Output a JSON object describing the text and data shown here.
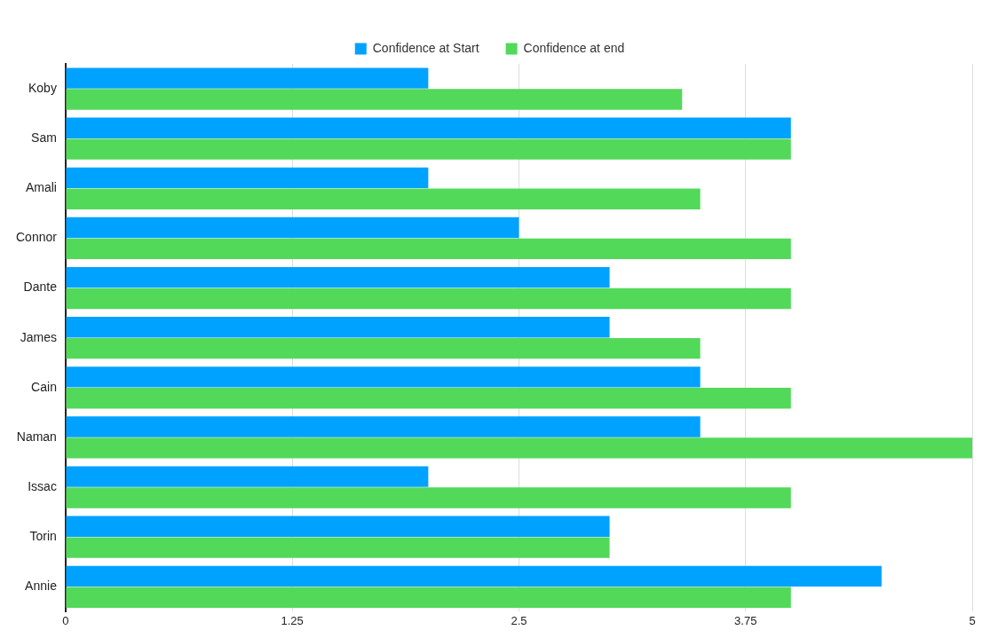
{
  "chart_data": {
    "type": "bar",
    "orientation": "horizontal",
    "categories": [
      "Koby",
      "Sam",
      "Amali",
      "Connor",
      "Dante",
      "James",
      "Cain",
      "Naman",
      "Issac",
      "Torin",
      "Annie"
    ],
    "series": [
      {
        "name": "Confidence at Start",
        "color": "#00a2ff",
        "values": [
          2,
          4,
          2,
          2.5,
          3,
          3,
          3.5,
          3.5,
          2,
          3,
          4.5
        ]
      },
      {
        "name": "Confidence at end",
        "color": "#52d95a",
        "values": [
          3.4,
          4,
          3.5,
          4,
          4,
          3.5,
          4,
          5,
          4,
          3,
          4
        ]
      }
    ],
    "xlim": [
      0,
      5
    ],
    "xticks": [
      0,
      1.25,
      2.5,
      3.75,
      5
    ],
    "grid": "x",
    "legend": "top"
  }
}
